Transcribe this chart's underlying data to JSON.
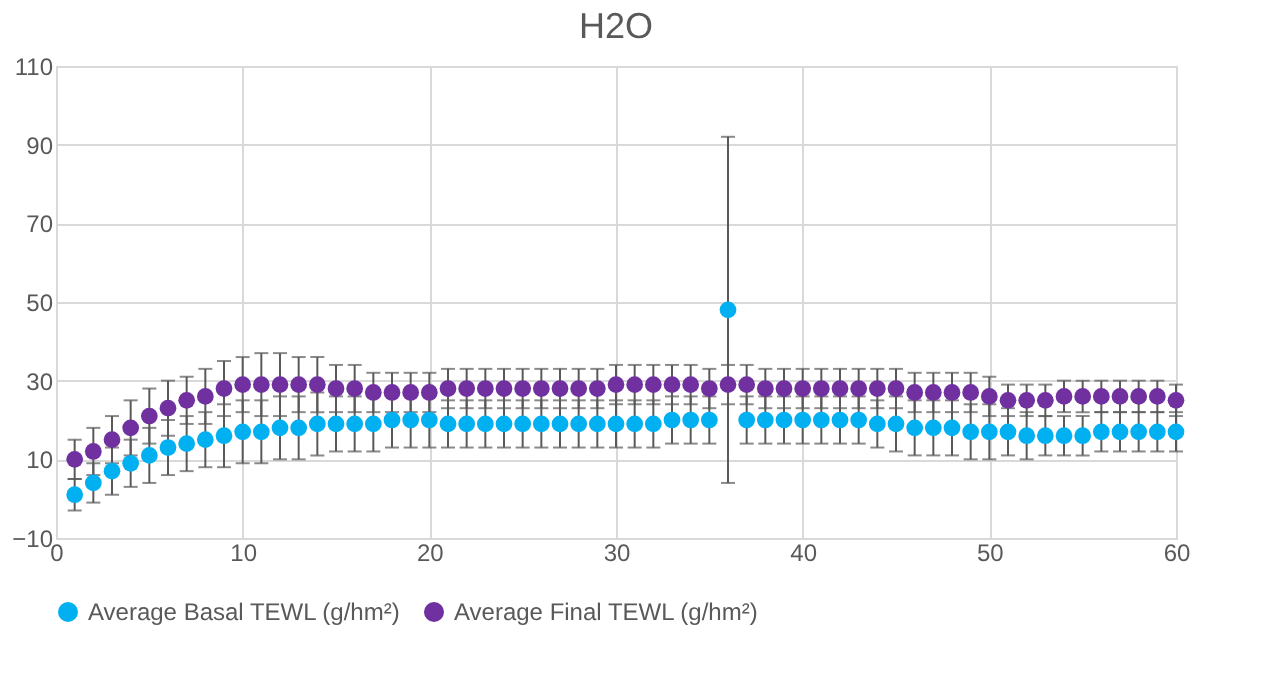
{
  "chart_data": {
    "type": "scatter",
    "title": "H2O",
    "x": [
      1,
      2,
      3,
      4,
      5,
      6,
      7,
      8,
      9,
      10,
      11,
      12,
      13,
      14,
      15,
      16,
      17,
      18,
      19,
      20,
      21,
      22,
      23,
      24,
      25,
      26,
      27,
      28,
      29,
      30,
      31,
      32,
      33,
      34,
      35,
      36,
      37,
      38,
      39,
      40,
      41,
      42,
      43,
      44,
      45,
      46,
      47,
      48,
      49,
      50,
      51,
      52,
      53,
      54,
      55,
      56,
      57,
      58,
      59,
      60
    ],
    "series": [
      {
        "name": "Average Basal TEWL (g/hm²)",
        "color": "#00b0f0",
        "values": [
          1,
          4,
          7,
          9,
          11,
          13,
          14,
          15,
          16,
          17,
          17,
          18,
          18,
          19,
          19,
          19,
          19,
          20,
          20,
          20,
          19,
          19,
          19,
          19,
          19,
          19,
          19,
          19,
          19,
          19,
          19,
          19,
          20,
          20,
          20,
          48,
          20,
          20,
          20,
          20,
          20,
          20,
          20,
          19,
          19,
          18,
          18,
          18,
          17,
          17,
          17,
          16,
          16,
          16,
          16,
          17,
          17,
          17,
          17,
          17
        ],
        "errors": [
          4,
          5,
          6,
          6,
          7,
          7,
          7,
          7,
          8,
          8,
          8,
          8,
          8,
          8,
          7,
          7,
          7,
          7,
          7,
          7,
          6,
          6,
          6,
          6,
          6,
          6,
          6,
          6,
          6,
          6,
          6,
          6,
          6,
          6,
          6,
          44,
          6,
          6,
          6,
          6,
          6,
          6,
          6,
          6,
          7,
          7,
          7,
          7,
          7,
          7,
          6,
          6,
          5,
          5,
          5,
          5,
          5,
          5,
          5,
          5
        ]
      },
      {
        "name": "Average Final TEWL (g/hm²)",
        "color": "#7030a0",
        "values": [
          10,
          12,
          15,
          18,
          21,
          23,
          25,
          26,
          28,
          29,
          29,
          29,
          29,
          29,
          28,
          28,
          27,
          27,
          27,
          27,
          28,
          28,
          28,
          28,
          28,
          28,
          28,
          28,
          28,
          29,
          29,
          29,
          29,
          29,
          28,
          29,
          29,
          28,
          28,
          28,
          28,
          28,
          28,
          28,
          28,
          27,
          27,
          27,
          27,
          26,
          25,
          25,
          25,
          26,
          26,
          26,
          26,
          26,
          26,
          25
        ],
        "errors": [
          5,
          6,
          6,
          7,
          7,
          7,
          6,
          7,
          7,
          7,
          8,
          8,
          7,
          7,
          6,
          6,
          5,
          5,
          5,
          5,
          5,
          5,
          5,
          5,
          5,
          5,
          5,
          5,
          5,
          5,
          5,
          5,
          5,
          5,
          5,
          5,
          5,
          5,
          5,
          5,
          5,
          5,
          5,
          5,
          5,
          5,
          5,
          5,
          5,
          5,
          4,
          4,
          4,
          4,
          4,
          4,
          4,
          4,
          4,
          4
        ]
      }
    ],
    "xlim": [
      0,
      60
    ],
    "xticks": [
      0,
      10,
      20,
      30,
      40,
      50,
      60
    ],
    "ylim": [
      -10,
      110
    ],
    "yticks": [
      -10,
      10,
      30,
      50,
      70,
      90,
      110
    ],
    "grid": true,
    "legend": "bottom",
    "marker": "circle"
  }
}
